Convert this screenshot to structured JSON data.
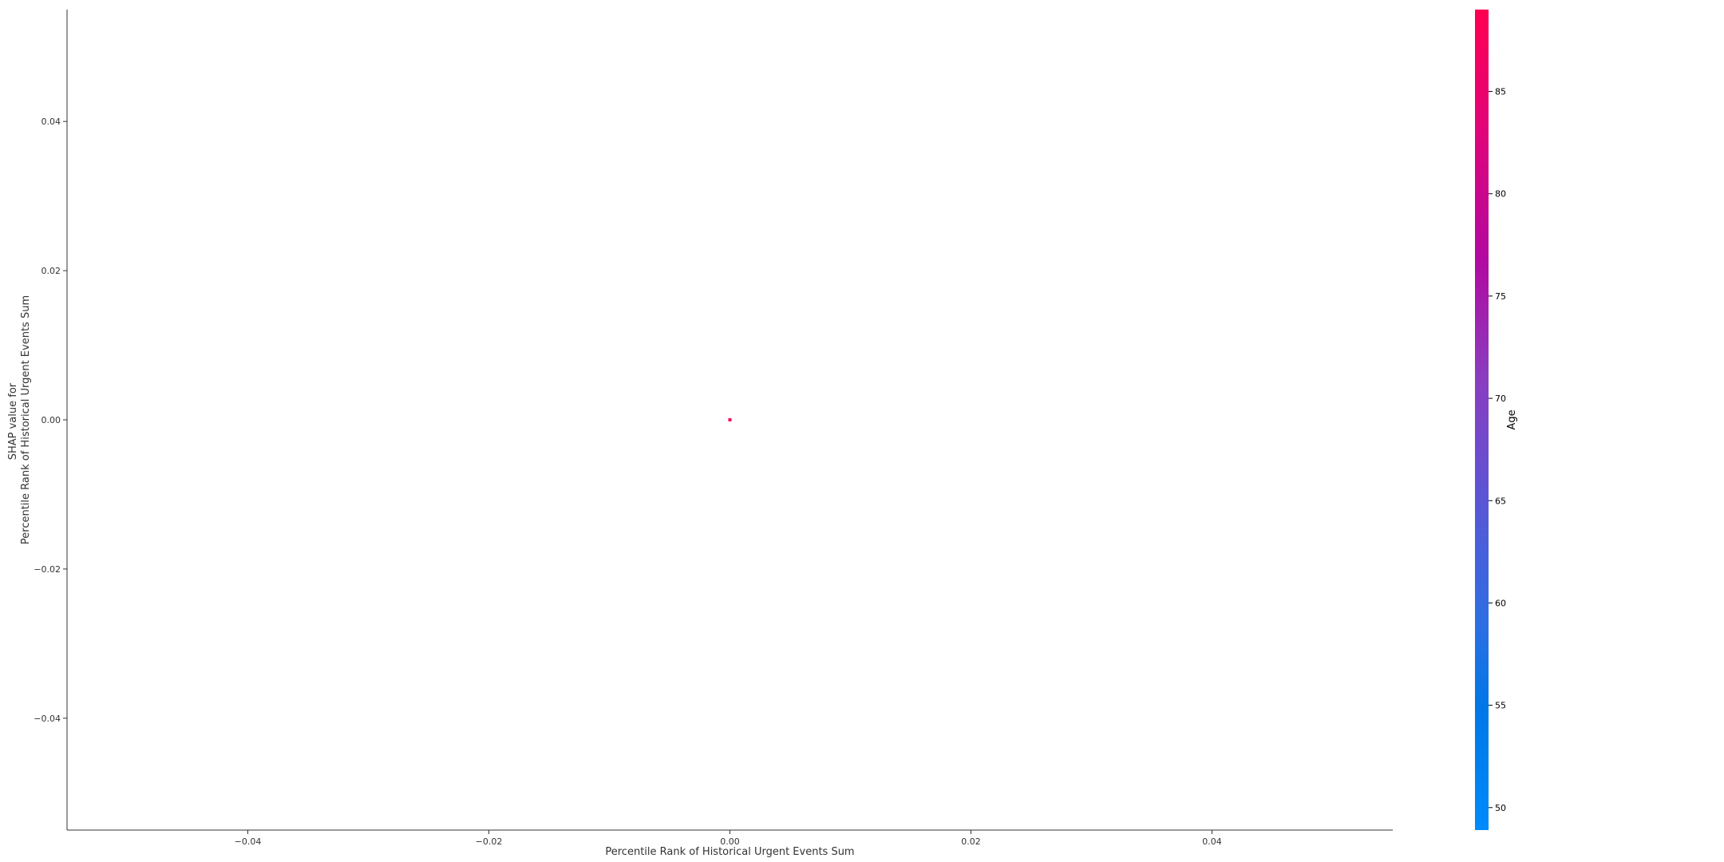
{
  "chart_data": {
    "type": "scatter",
    "title": "",
    "xlabel": "Percentile Rank of Historical Urgent Events Sum",
    "ylabel_lines": [
      "SHAP value for",
      "Percentile Rank of Historical Urgent Events Sum"
    ],
    "xlim": [
      -0.055,
      0.055
    ],
    "ylim": [
      -0.055,
      0.055
    ],
    "x_ticks": [
      -0.04,
      -0.02,
      0.0,
      0.02,
      0.04
    ],
    "x_tick_labels": [
      "−0.04",
      "−0.02",
      "0.00",
      "0.02",
      "0.04"
    ],
    "y_ticks": [
      0.04,
      0.02,
      0.0,
      -0.02,
      -0.04
    ],
    "y_tick_labels": [
      "0.04",
      "0.02",
      "0.00",
      "−0.02",
      "−0.04"
    ],
    "points": [
      {
        "x": 0.0,
        "y": 0.0,
        "color_value": 89
      }
    ],
    "colorbar": {
      "label": "Age",
      "range": [
        48.9,
        89
      ],
      "ticks": [
        85,
        80,
        75,
        70,
        65,
        60,
        55,
        50
      ],
      "tick_labels": [
        "85",
        "80",
        "75",
        "70",
        "65",
        "60",
        "55",
        "50"
      ],
      "color_low": "#008afb",
      "color_high": "#ff0051"
    },
    "grid": false,
    "spines": [
      "left",
      "bottom"
    ]
  },
  "colors": {
    "axis": "#333333",
    "point": "#ff0051"
  }
}
